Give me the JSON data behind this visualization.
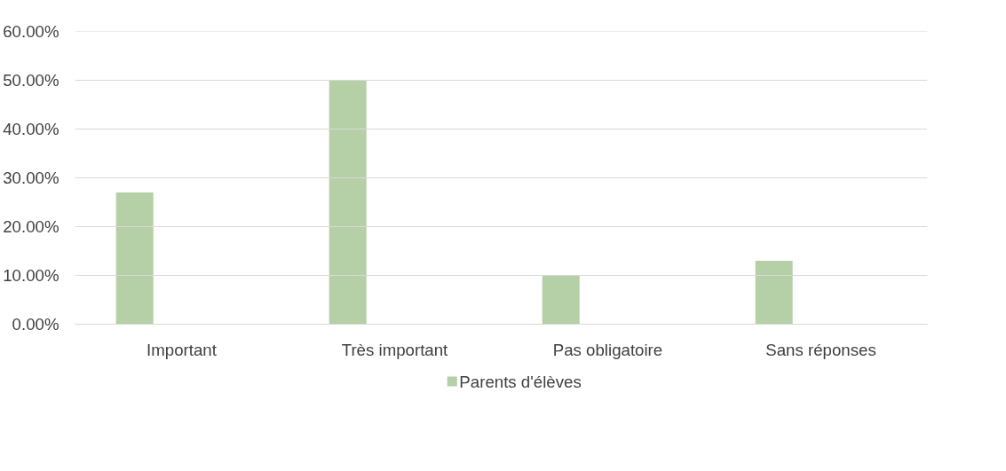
{
  "chart_data": {
    "type": "bar",
    "categories": [
      "Important",
      "Très important",
      "Pas obligatoire",
      "Sans réponses"
    ],
    "series": [
      {
        "name": "Parents d'élèves",
        "color": "#b5cfa6",
        "values": [
          27,
          50,
          10,
          13
        ]
      }
    ],
    "ylim": [
      0,
      60
    ],
    "yticks": [
      {
        "value": 0,
        "label": "0.00%"
      },
      {
        "value": 10,
        "label": "10.00%"
      },
      {
        "value": 20,
        "label": "20.00%"
      },
      {
        "value": 30,
        "label": "30.00%"
      },
      {
        "value": 40,
        "label": "40.00%"
      },
      {
        "value": 50,
        "label": "50.00%"
      },
      {
        "value": 60,
        "label": "60.00%"
      }
    ],
    "grid": "y",
    "legend": "bottom"
  }
}
